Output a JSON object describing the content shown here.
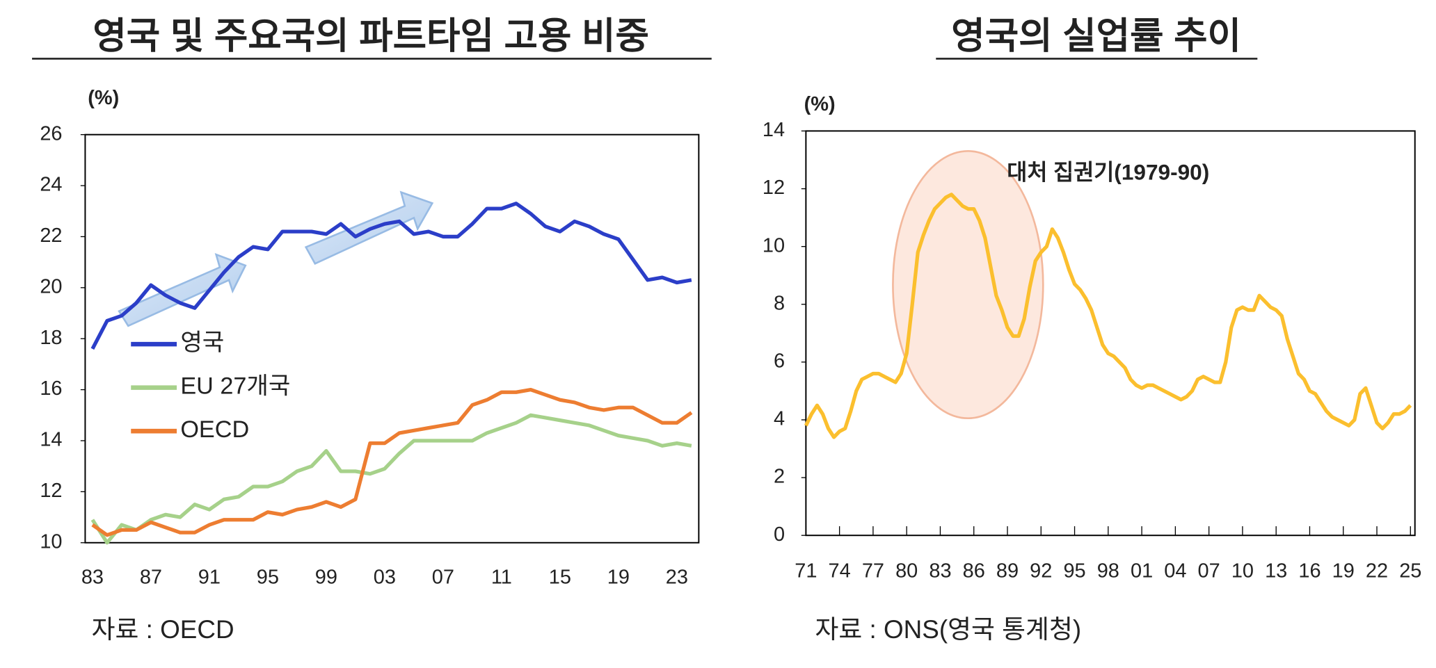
{
  "chart_data": [
    {
      "type": "line",
      "title": "영국 및 주요국의 파트타임 고용 비중",
      "y_unit": "(%)",
      "source": "자료 : OECD",
      "x": [
        1983,
        1984,
        1985,
        1986,
        1987,
        1988,
        1989,
        1990,
        1991,
        1992,
        1993,
        1994,
        1995,
        1996,
        1997,
        1998,
        1999,
        2000,
        2001,
        2002,
        2003,
        2004,
        2005,
        2006,
        2007,
        2008,
        2009,
        2010,
        2011,
        2012,
        2013,
        2014,
        2015,
        2016,
        2017,
        2018,
        2019,
        2020,
        2021,
        2022,
        2023,
        2024
      ],
      "series": [
        {
          "name": "영국",
          "color": "#2b3ec8",
          "values": [
            17.6,
            18.7,
            18.9,
            19.4,
            20.1,
            19.7,
            19.4,
            19.2,
            19.9,
            20.6,
            21.2,
            21.6,
            21.5,
            22.2,
            22.2,
            22.2,
            22.1,
            22.5,
            22.0,
            22.3,
            22.5,
            22.6,
            22.1,
            22.2,
            22.0,
            22.0,
            22.5,
            23.1,
            23.1,
            23.3,
            22.9,
            22.4,
            22.2,
            22.6,
            22.4,
            22.1,
            21.9,
            21.1,
            20.3,
            20.4,
            20.2,
            20.3
          ]
        },
        {
          "name": "EU 27개국",
          "color": "#a6d18a",
          "values": [
            10.9,
            10.0,
            10.7,
            10.5,
            10.9,
            11.1,
            11.0,
            11.5,
            11.3,
            11.7,
            11.8,
            12.2,
            12.2,
            12.4,
            12.8,
            13.0,
            13.6,
            12.8,
            12.8,
            12.7,
            12.9,
            13.5,
            14.0,
            14.0,
            14.0,
            14.0,
            14.0,
            14.3,
            14.5,
            14.7,
            15.0,
            14.9,
            14.8,
            14.7,
            14.6,
            14.4,
            14.2,
            14.1,
            14.0,
            13.8,
            13.9,
            13.8
          ]
        },
        {
          "name": "OECD",
          "color": "#ed7d31",
          "values": [
            10.7,
            10.3,
            10.5,
            10.5,
            10.8,
            10.6,
            10.4,
            10.4,
            10.7,
            10.9,
            10.9,
            10.9,
            11.2,
            11.1,
            11.3,
            11.4,
            11.6,
            11.4,
            11.7,
            13.9,
            13.9,
            14.3,
            14.4,
            14.5,
            14.6,
            14.7,
            15.4,
            15.6,
            15.9,
            15.9,
            16.0,
            15.8,
            15.6,
            15.5,
            15.3,
            15.2,
            15.3,
            15.3,
            15.0,
            14.7,
            14.7,
            15.1
          ]
        }
      ],
      "xlim": [
        1982.5,
        2024.5
      ],
      "xticks": [
        {
          "value": 1983,
          "label": "83"
        },
        {
          "value": 1987,
          "label": "87"
        },
        {
          "value": 1991,
          "label": "91"
        },
        {
          "value": 1995,
          "label": "95"
        },
        {
          "value": 1999,
          "label": "99"
        },
        {
          "value": 2003,
          "label": "03"
        },
        {
          "value": 2007,
          "label": "07"
        },
        {
          "value": 2011,
          "label": "11"
        },
        {
          "value": 2015,
          "label": "15"
        },
        {
          "value": 2019,
          "label": "19"
        },
        {
          "value": 2023,
          "label": "23"
        }
      ],
      "ylim": [
        10,
        26
      ],
      "yticks": [
        10,
        12,
        14,
        16,
        18,
        20,
        22,
        24,
        26
      ],
      "legend": "left",
      "grid": false
    },
    {
      "type": "line",
      "title": "영국의 실업률 추이",
      "y_unit": "(%)",
      "source": "자료 : ONS(영국 통계청)",
      "annotation": "대처 집권기(1979-90)",
      "x": [
        1971,
        1971.5,
        1972,
        1972.5,
        1973,
        1973.5,
        1974,
        1974.5,
        1975,
        1975.5,
        1976,
        1976.5,
        1977,
        1977.5,
        1978,
        1978.5,
        1979,
        1979.5,
        1980,
        1980.5,
        1981,
        1981.5,
        1982,
        1982.5,
        1983,
        1983.5,
        1984,
        1984.5,
        1985,
        1985.5,
        1986,
        1986.5,
        1987,
        1987.5,
        1988,
        1988.5,
        1989,
        1989.5,
        1990,
        1990.5,
        1991,
        1991.5,
        1992,
        1992.5,
        1993,
        1993.5,
        1994,
        1994.5,
        1995,
        1995.5,
        1996,
        1996.5,
        1997,
        1997.5,
        1998,
        1998.5,
        1999,
        1999.5,
        2000,
        2000.5,
        2001,
        2001.5,
        2002,
        2002.5,
        2003,
        2003.5,
        2004,
        2004.5,
        2005,
        2005.5,
        2006,
        2006.5,
        2007,
        2007.5,
        2008,
        2008.5,
        2009,
        2009.5,
        2010,
        2010.5,
        2011,
        2011.5,
        2012,
        2012.5,
        2013,
        2013.5,
        2014,
        2014.5,
        2015,
        2015.5,
        2016,
        2016.5,
        2017,
        2017.5,
        2018,
        2018.5,
        2019,
        2019.5,
        2020,
        2020.5,
        2021,
        2021.5,
        2022,
        2022.5,
        2023,
        2023.5,
        2024,
        2024.5,
        2025
      ],
      "series": [
        {
          "name": "실업률",
          "color": "#fbbf2e",
          "values": [
            3.8,
            4.2,
            4.5,
            4.2,
            3.7,
            3.4,
            3.6,
            3.7,
            4.3,
            5.0,
            5.4,
            5.5,
            5.6,
            5.6,
            5.5,
            5.4,
            5.3,
            5.6,
            6.3,
            8.0,
            9.8,
            10.4,
            10.9,
            11.3,
            11.5,
            11.7,
            11.8,
            11.6,
            11.4,
            11.3,
            11.3,
            10.9,
            10.3,
            9.3,
            8.3,
            7.8,
            7.2,
            6.9,
            6.9,
            7.5,
            8.6,
            9.5,
            9.8,
            10.0,
            10.6,
            10.3,
            9.8,
            9.2,
            8.7,
            8.5,
            8.2,
            7.8,
            7.2,
            6.6,
            6.3,
            6.2,
            6.0,
            5.8,
            5.4,
            5.2,
            5.1,
            5.2,
            5.2,
            5.1,
            5.0,
            4.9,
            4.8,
            4.7,
            4.8,
            5.0,
            5.4,
            5.5,
            5.4,
            5.3,
            5.3,
            6.0,
            7.2,
            7.8,
            7.9,
            7.8,
            7.8,
            8.3,
            8.1,
            7.9,
            7.8,
            7.6,
            6.8,
            6.2,
            5.6,
            5.4,
            5.0,
            4.9,
            4.6,
            4.3,
            4.1,
            4.0,
            3.9,
            3.8,
            4.0,
            4.9,
            5.1,
            4.5,
            3.9,
            3.7,
            3.9,
            4.2,
            4.2,
            4.3,
            4.5
          ]
        }
      ],
      "xlim": [
        1971,
        2025.4
      ],
      "xticks": [
        {
          "value": 1971,
          "label": "71"
        },
        {
          "value": 1974,
          "label": "74"
        },
        {
          "value": 1977,
          "label": "77"
        },
        {
          "value": 1980,
          "label": "80"
        },
        {
          "value": 1983,
          "label": "83"
        },
        {
          "value": 1986,
          "label": "86"
        },
        {
          "value": 1989,
          "label": "89"
        },
        {
          "value": 1992,
          "label": "92"
        },
        {
          "value": 1995,
          "label": "95"
        },
        {
          "value": 1998,
          "label": "98"
        },
        {
          "value": 2001,
          "label": "01"
        },
        {
          "value": 2004,
          "label": "04"
        },
        {
          "value": 2007,
          "label": "07"
        },
        {
          "value": 2010,
          "label": "10"
        },
        {
          "value": 2013,
          "label": "13"
        },
        {
          "value": 2016,
          "label": "16"
        },
        {
          "value": 2019,
          "label": "19"
        },
        {
          "value": 2022,
          "label": "22"
        },
        {
          "value": 2025,
          "label": "25"
        }
      ],
      "ylim": [
        0,
        14
      ],
      "yticks": [
        0,
        2,
        4,
        6,
        8,
        10,
        12,
        14
      ],
      "grid": false
    }
  ]
}
